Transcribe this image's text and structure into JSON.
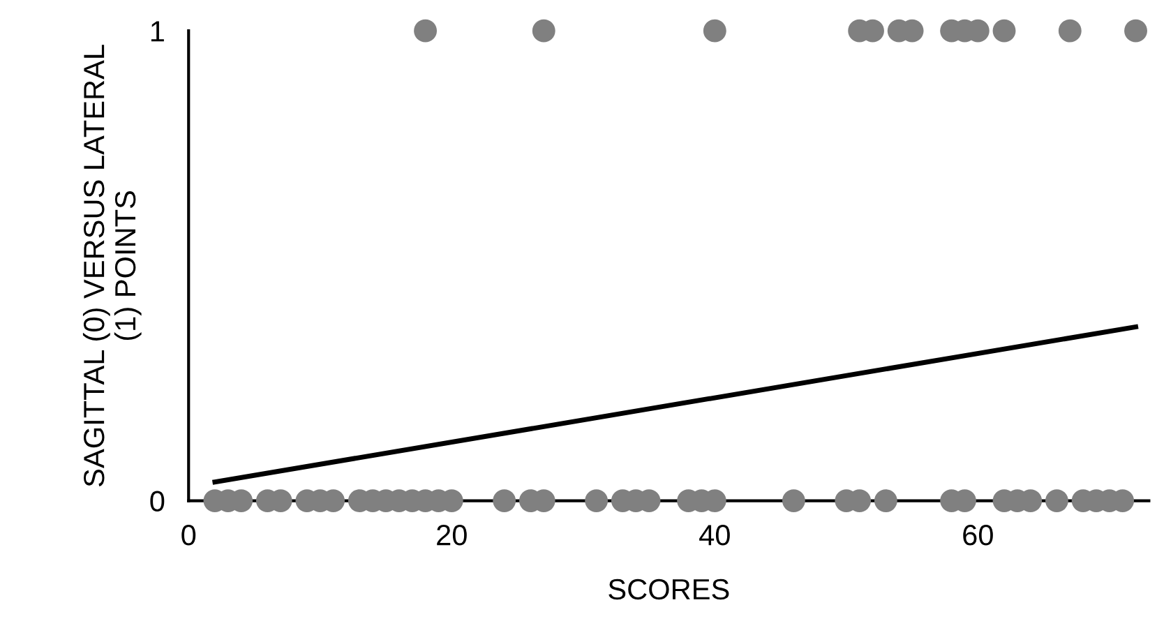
{
  "chart_data": {
    "type": "scatter",
    "xlabel": "SCORES",
    "ylabel": "SAGITTAL (0) VERSUS LATERAL\n(1) POINTS",
    "xlim": [
      0,
      73
    ],
    "xticks": [
      0,
      20,
      40,
      60
    ],
    "ylim": [
      0,
      1
    ],
    "yticks": [
      0,
      1
    ],
    "grid": false,
    "legend": false,
    "marker": "circle",
    "series": [
      {
        "color": "#808080",
        "x": [
          2,
          3,
          4,
          6,
          7,
          9,
          10,
          11,
          13,
          14,
          15,
          16,
          17,
          18,
          19,
          20,
          24,
          26,
          27,
          31,
          33,
          34,
          35,
          38,
          39,
          40,
          46,
          50,
          51,
          53,
          58,
          59,
          62,
          63,
          64,
          66,
          68,
          69,
          70,
          71,
          18,
          27,
          40,
          51,
          52,
          54,
          55,
          58,
          59,
          60,
          62,
          67,
          72
        ],
        "values": [
          0,
          0,
          0,
          0,
          0,
          0,
          0,
          0,
          0,
          0,
          0,
          0,
          0,
          0,
          0,
          0,
          0,
          0,
          0,
          0,
          0,
          0,
          0,
          0,
          0,
          0,
          0,
          0,
          0,
          0,
          0,
          0,
          0,
          0,
          0,
          0,
          0,
          0,
          0,
          0,
          1,
          1,
          1,
          1,
          1,
          1,
          1,
          1,
          1,
          1,
          1,
          1,
          1
        ]
      },
      {
        "type": "line",
        "color": "#000000",
        "marker": "none",
        "x": [
          2,
          72
        ],
        "values": [
          0.04,
          0.37
        ]
      }
    ]
  }
}
